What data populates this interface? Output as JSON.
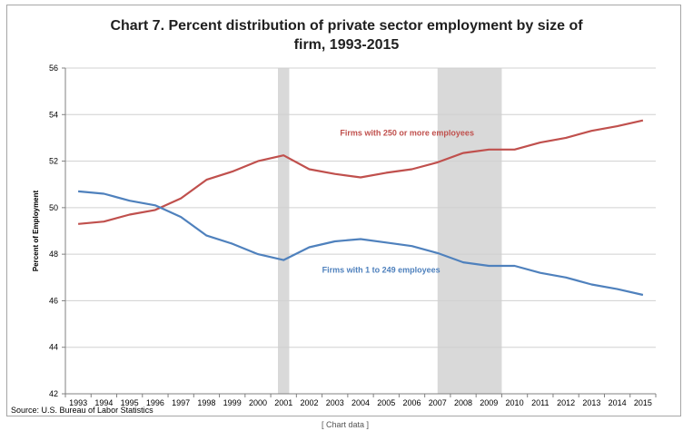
{
  "footer_link": "[ Chart data ]",
  "chart_data": {
    "type": "line",
    "title_line1": "Chart 7. Percent distribution of private sector employment by size of",
    "title_line2": "firm, 1993-2015",
    "xlabel": "",
    "ylabel": "Percent of Employment",
    "ylim": [
      42,
      56
    ],
    "y_ticks": [
      42,
      44,
      46,
      48,
      50,
      52,
      54,
      56
    ],
    "categories": [
      "1993",
      "1994",
      "1995",
      "1996",
      "1997",
      "1998",
      "1999",
      "2000",
      "2001",
      "2002",
      "2003",
      "2004",
      "2005",
      "2006",
      "2007",
      "2008",
      "2009",
      "2010",
      "2011",
      "2012",
      "2013",
      "2014",
      "2015"
    ],
    "series": [
      {
        "name": "Firms with 250 or more employees",
        "color": "#c0504d",
        "values": [
          49.3,
          49.4,
          49.7,
          49.9,
          50.4,
          51.2,
          51.55,
          52.0,
          52.25,
          51.65,
          51.45,
          51.3,
          51.5,
          51.65,
          51.95,
          52.35,
          52.5,
          52.5,
          52.8,
          53.0,
          53.3,
          53.5,
          53.75
        ]
      },
      {
        "name": "Firms with 1 to 249 employees",
        "color": "#4f81bd",
        "values": [
          50.7,
          50.6,
          50.3,
          50.1,
          49.6,
          48.8,
          48.45,
          48.0,
          47.75,
          48.3,
          48.55,
          48.65,
          48.5,
          48.35,
          48.05,
          47.65,
          47.5,
          47.5,
          47.2,
          47.0,
          46.7,
          46.5,
          46.25
        ]
      }
    ],
    "recession_shading": [
      {
        "from": "2001",
        "to": "2001",
        "color": "#d9d9d9"
      },
      {
        "from": "2007.5",
        "to": "2009",
        "color": "#d9d9d9"
      }
    ],
    "grid": "horizontal",
    "source": "Source: U.S. Bureau of Labor Statistics"
  }
}
